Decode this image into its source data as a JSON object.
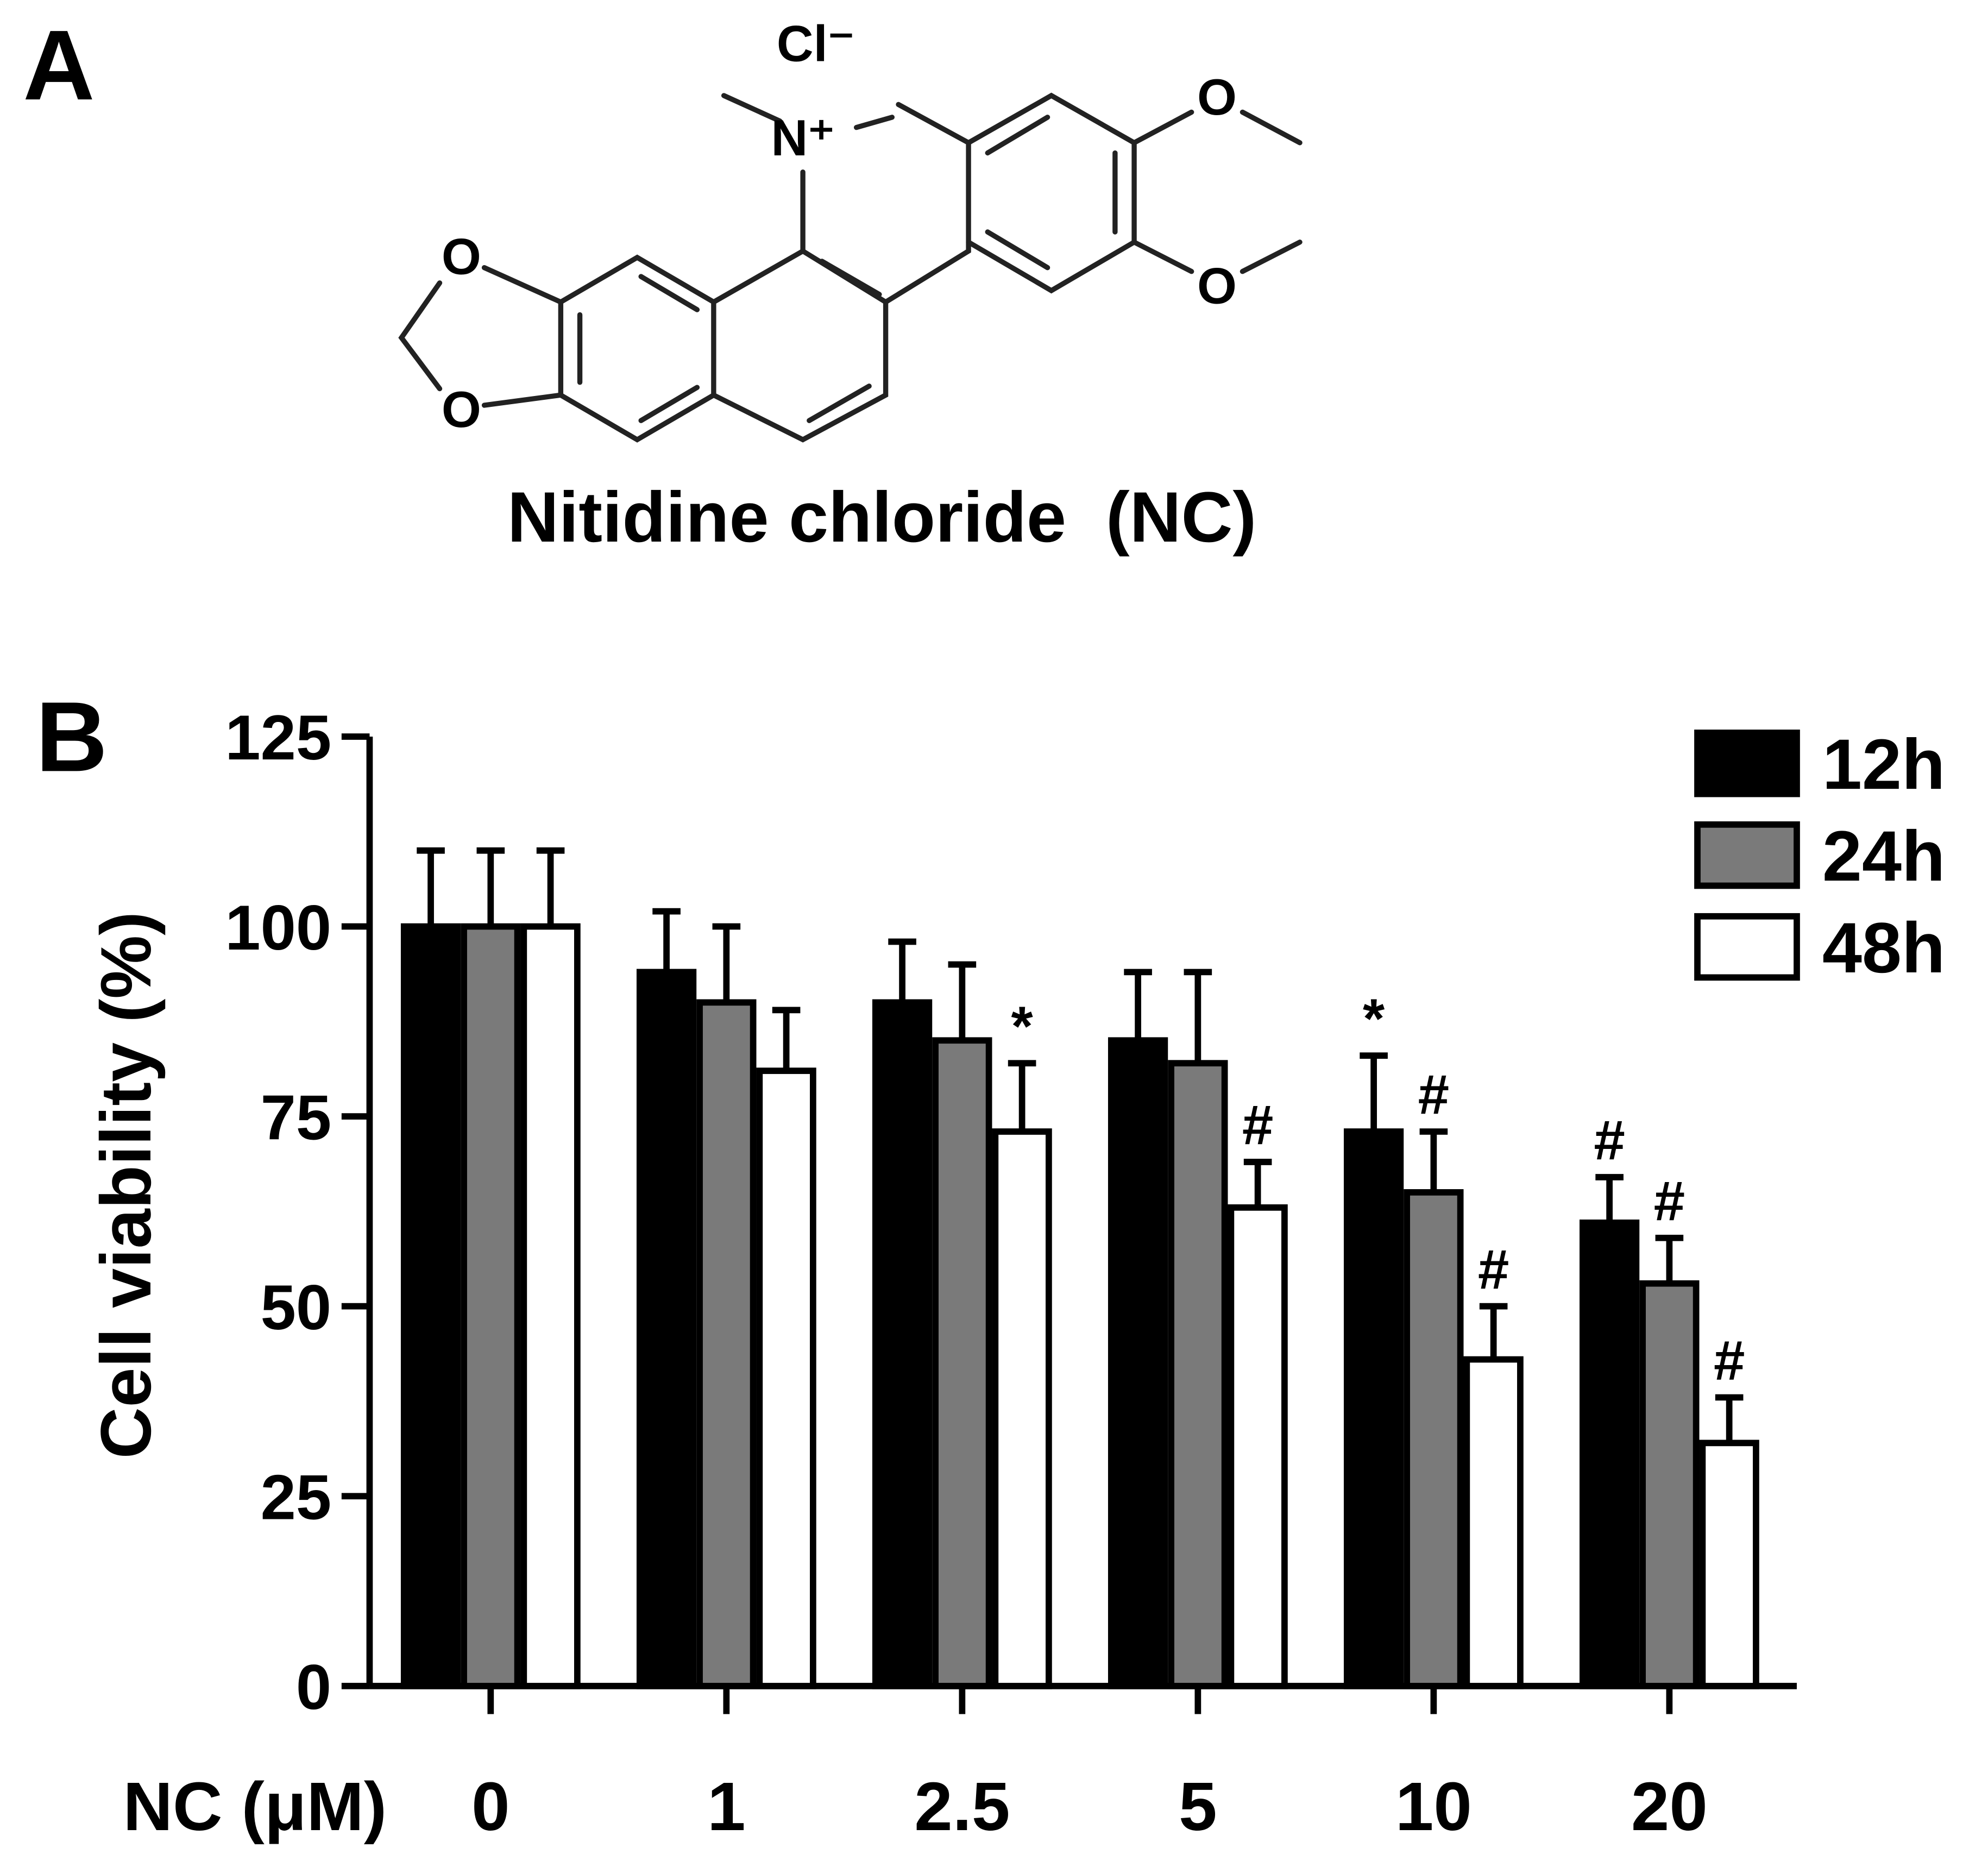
{
  "panel_a": {
    "label": "A",
    "compound": "Nitidine chloride  (NC)",
    "atoms": {
      "chloride": "Cl⁻",
      "nitrogen": "N⁺",
      "oxygens": [
        "O",
        "O",
        "O",
        "O"
      ]
    }
  },
  "chart_data": {
    "type": "bar",
    "panel_label": "B",
    "x_label": "NC (μM)",
    "y_label": "Cell viability (%)",
    "categories": [
      "0",
      "1",
      "2.5",
      "5",
      "10",
      "20"
    ],
    "ylim": [
      0,
      125
    ],
    "yticks": [
      0,
      25,
      50,
      75,
      100,
      125
    ],
    "legend": "top-right",
    "series": [
      {
        "name": "12h",
        "color": "#000000",
        "values": [
          100,
          94,
          90,
          85,
          73,
          61
        ],
        "errors": [
          10,
          8,
          8,
          9,
          10,
          6
        ],
        "annotations": [
          null,
          null,
          null,
          null,
          "*",
          "#"
        ]
      },
      {
        "name": "24h",
        "color": "#7a7a7a",
        "values": [
          100,
          90,
          85,
          82,
          65,
          53
        ],
        "errors": [
          10,
          10,
          10,
          12,
          8,
          6
        ],
        "annotations": [
          null,
          null,
          null,
          null,
          "#",
          "#"
        ]
      },
      {
        "name": "48h",
        "color": "#ffffff",
        "values": [
          100,
          81,
          73,
          63,
          43,
          32
        ],
        "errors": [
          10,
          8,
          9,
          6,
          7,
          6
        ],
        "annotations": [
          null,
          null,
          "*",
          "#",
          "#",
          "#"
        ]
      }
    ]
  }
}
